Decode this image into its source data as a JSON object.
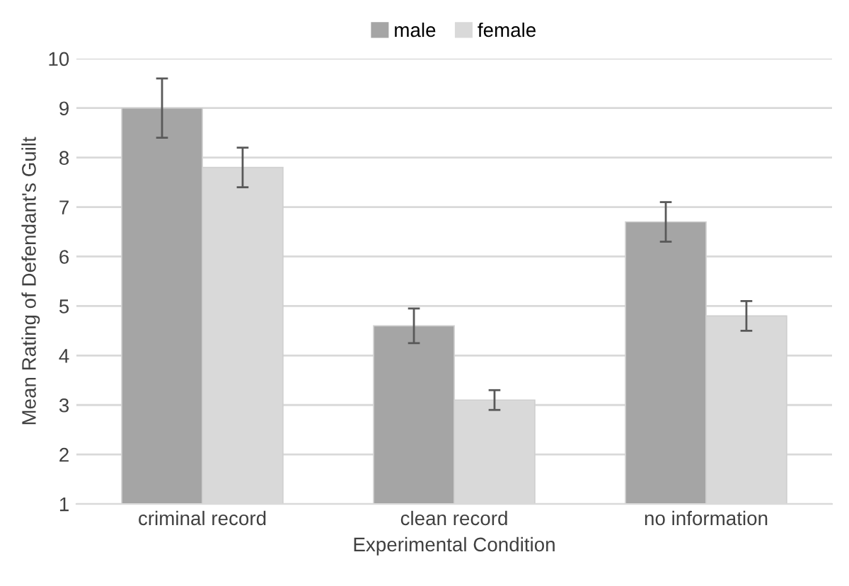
{
  "chart_data": {
    "type": "bar",
    "xlabel": "Experimental Condition",
    "ylabel": "Mean Rating of Defendant's Guilt",
    "categories": [
      "criminal record",
      "clean record",
      "no information"
    ],
    "series": [
      {
        "name": "male",
        "color": "#a5a5a5",
        "values": [
          9,
          4.6,
          6.7
        ],
        "errors": [
          0.6,
          0.35,
          0.4
        ]
      },
      {
        "name": "female",
        "color": "#d9d9d9",
        "values": [
          7.8,
          3.1,
          4.8
        ],
        "errors": [
          0.4,
          0.2,
          0.3
        ]
      }
    ],
    "ylim": [
      1,
      10
    ],
    "yticks": [
      1,
      2,
      3,
      4,
      5,
      6,
      7,
      8,
      9,
      10
    ],
    "grid": "y",
    "legend": "top"
  }
}
